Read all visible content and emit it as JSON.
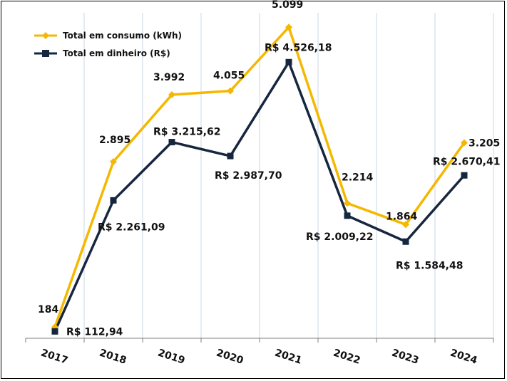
{
  "chart_data": {
    "type": "line",
    "title": "",
    "xlabel": "",
    "ylabel": "",
    "categories": [
      "2017",
      "2018",
      "2019",
      "2020",
      "2021",
      "2022",
      "2023",
      "2024"
    ],
    "legend_position": "top-left",
    "grid": "vertical",
    "series": [
      {
        "name": "Total em consumo (kWh)",
        "color": "#F5B800",
        "marker": "diamond",
        "values": [
          184,
          2895,
          3992,
          4055,
          5099,
          2214,
          1864,
          3205
        ],
        "labels": [
          "184",
          "2.895",
          "3.992",
          "4.055",
          "5.099",
          "2.214",
          "1.864",
          "3.205"
        ]
      },
      {
        "name": "Total em dinheiro (R$)",
        "color": "#17263F",
        "marker": "square",
        "values": [
          112.94,
          2261.09,
          3215.62,
          2987.7,
          4526.18,
          2009.22,
          1584.48,
          2670.41
        ],
        "labels": [
          "R$ 112,94",
          "R$ 2.261,09",
          "R$ 3.215,62",
          "R$ 2.987,70",
          "R$ 4.526,18",
          "R$ 2.009,22",
          "R$ 1.584,48",
          "R$ 2.670,41"
        ]
      }
    ]
  }
}
